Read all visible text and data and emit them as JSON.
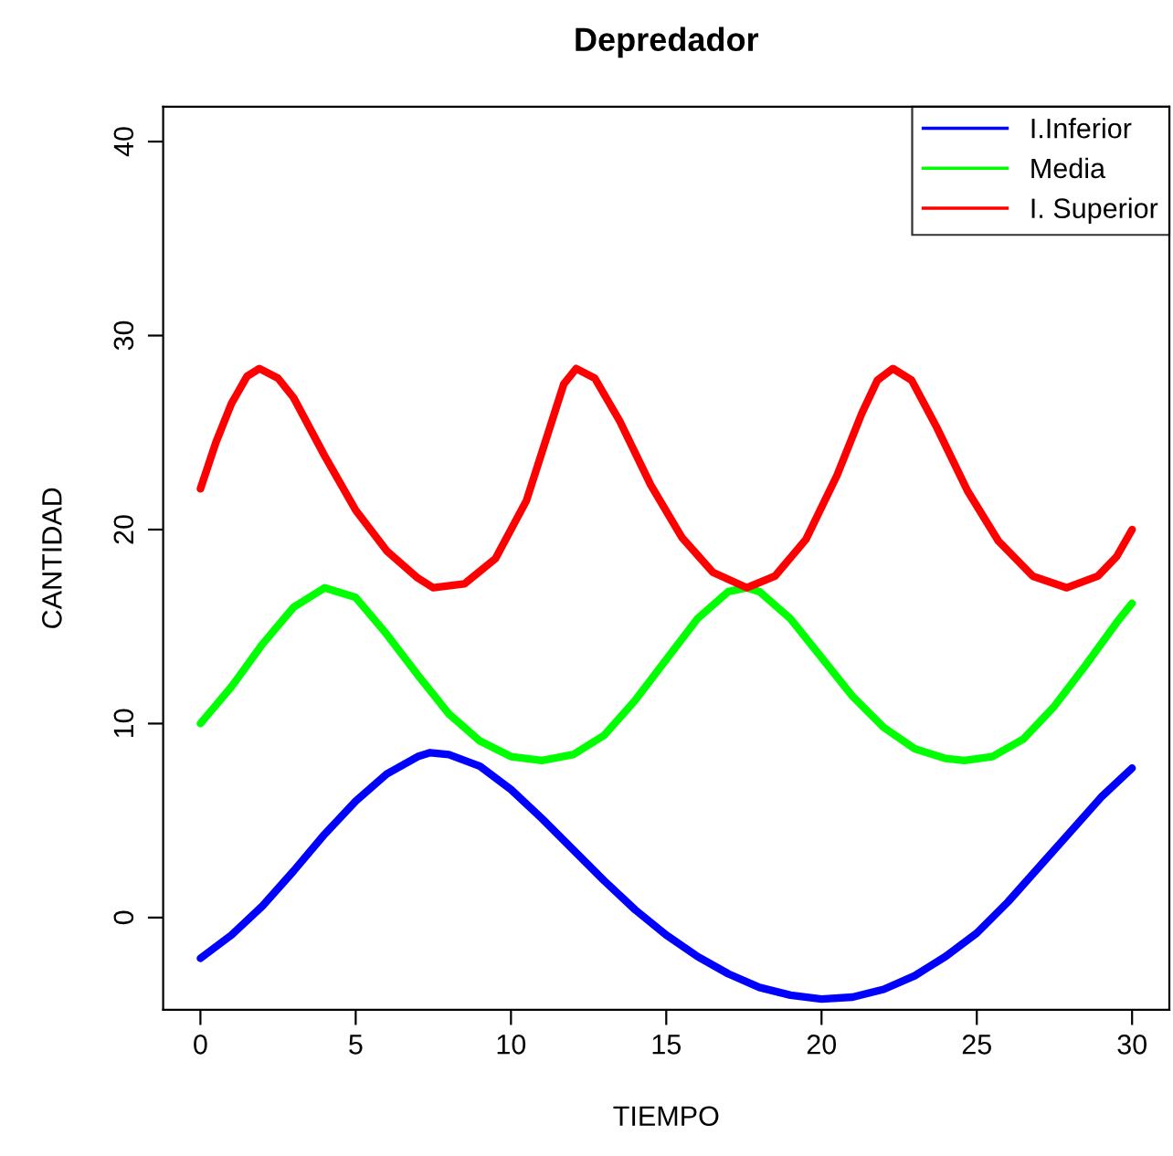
{
  "chart_data": {
    "type": "line",
    "title": "Depredador",
    "xlabel": "TIEMPO",
    "ylabel": "CANTIDAD",
    "xlim": [
      -1.2,
      31.2
    ],
    "ylim": [
      -4.75,
      41.8
    ],
    "xticks": [
      0,
      5,
      10,
      15,
      20,
      25,
      30
    ],
    "yticks": [
      0,
      10,
      20,
      30,
      40
    ],
    "grid": false,
    "legend": "top right",
    "marker": "none",
    "line_style": "solid",
    "series": [
      {
        "name": "I.Inferior",
        "color": "#0000ff",
        "x": [
          0,
          1,
          2,
          3,
          4,
          5,
          6,
          7,
          7.4,
          8,
          9,
          10,
          11,
          12,
          13,
          14,
          15,
          16,
          17,
          18,
          19,
          20,
          21,
          22,
          23,
          24,
          25,
          26,
          27,
          28,
          29,
          30
        ],
        "values": [
          -2.1,
          -0.9,
          0.6,
          2.4,
          4.3,
          6.0,
          7.4,
          8.3,
          8.5,
          8.4,
          7.8,
          6.6,
          5.1,
          3.5,
          1.9,
          0.4,
          -0.9,
          -2.0,
          -2.9,
          -3.6,
          -4.0,
          -4.2,
          -4.1,
          -3.7,
          -3.0,
          -2.0,
          -0.8,
          0.8,
          2.6,
          4.4,
          6.2,
          7.7
        ]
      },
      {
        "name": "Media",
        "color": "#00ff00",
        "x": [
          0,
          1,
          2,
          3,
          4,
          5,
          6,
          7,
          8,
          9,
          10,
          11,
          12,
          13,
          14,
          15,
          16,
          17,
          17.6,
          18,
          19,
          20,
          21,
          22,
          23,
          24,
          24.6,
          25.5,
          26.5,
          27.5,
          28.5,
          29.5,
          30
        ],
        "values": [
          10.0,
          11.9,
          14.1,
          16.0,
          17.0,
          16.5,
          14.6,
          12.5,
          10.5,
          9.1,
          8.3,
          8.1,
          8.4,
          9.4,
          11.2,
          13.3,
          15.4,
          16.8,
          17.0,
          16.8,
          15.4,
          13.4,
          11.4,
          9.8,
          8.7,
          8.2,
          8.1,
          8.3,
          9.2,
          10.9,
          13.0,
          15.2,
          16.2
        ]
      },
      {
        "name": "I. Superior",
        "color": "#ff0000",
        "x": [
          0,
          0.5,
          1,
          1.5,
          1.9,
          2.5,
          3,
          4,
          5,
          6,
          7,
          7.5,
          8.5,
          9.5,
          10.5,
          11.2,
          11.7,
          12.1,
          12.7,
          13.5,
          14.5,
          15.5,
          16.5,
          17.6,
          18.5,
          19.5,
          20.5,
          21.3,
          21.8,
          22.3,
          22.9,
          23.7,
          24.7,
          25.7,
          26.8,
          27.9,
          28.9,
          29.5,
          30
        ],
        "values": [
          22.1,
          24.5,
          26.5,
          27.9,
          28.3,
          27.8,
          26.8,
          23.8,
          21.0,
          18.9,
          17.5,
          17.0,
          17.2,
          18.5,
          21.5,
          25.0,
          27.5,
          28.3,
          27.8,
          25.6,
          22.3,
          19.6,
          17.8,
          17.0,
          17.6,
          19.5,
          22.8,
          26.0,
          27.7,
          28.3,
          27.7,
          25.3,
          22.0,
          19.4,
          17.6,
          17.0,
          17.6,
          18.6,
          20.0
        ]
      }
    ]
  }
}
